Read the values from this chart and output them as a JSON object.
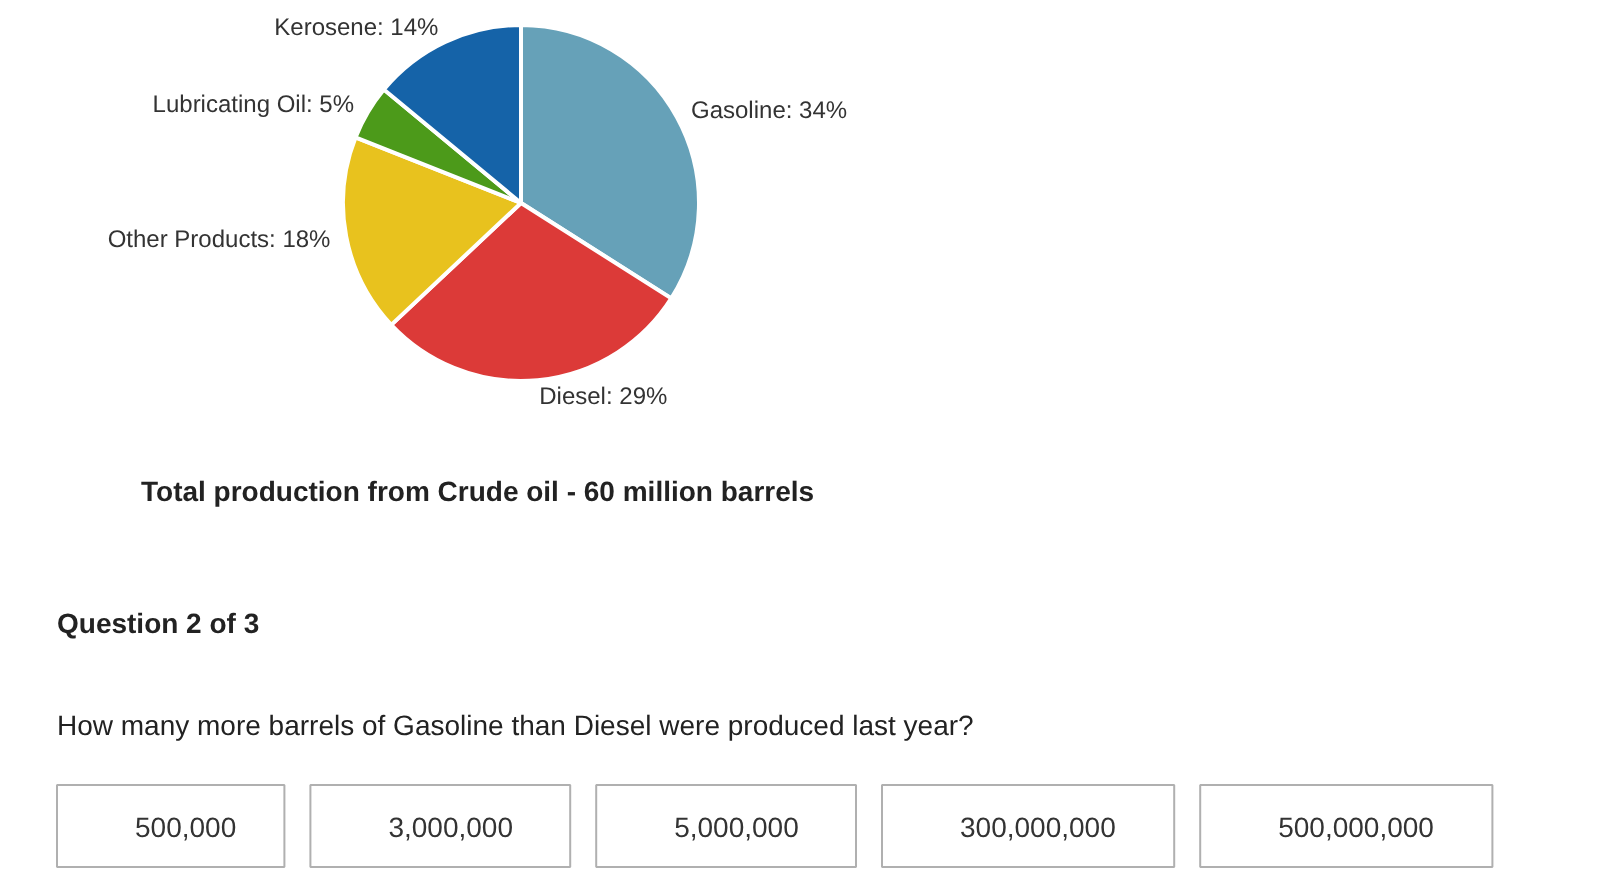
{
  "chart_data": {
    "type": "pie",
    "title": "Total production from Crude oil - 60 million barrels",
    "categories": [
      "Gasoline",
      "Diesel",
      "Other Products",
      "Lubricating Oil",
      "Kerosene"
    ],
    "values": [
      34,
      29,
      18,
      5,
      14
    ],
    "value_labels": [
      "34%",
      "29%",
      "18%",
      "5%",
      "14%"
    ],
    "colors": [
      "#66a1b8",
      "#dc3a38",
      "#e8c21e",
      "#4c9a1a",
      "#1563a8"
    ],
    "annotations": [
      "Question 2 of 3",
      "How many more barrels of Gasoline than Diesel were produced last year?",
      "500,000",
      "3,000,000",
      "5,000,000",
      "300,000,000",
      "500,000,000"
    ]
  }
}
